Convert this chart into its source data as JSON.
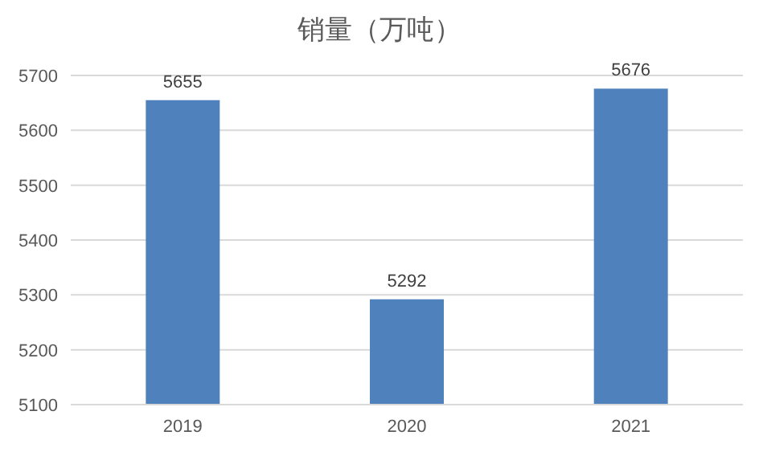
{
  "chart_data": {
    "type": "bar",
    "title": "销量（万吨）",
    "categories": [
      "2019",
      "2020",
      "2021"
    ],
    "values": [
      5655,
      5292,
      5676
    ],
    "color": "#4f81bd",
    "ylim": [
      5100,
      5700
    ],
    "yticks": [
      5100,
      5200,
      5300,
      5400,
      5500,
      5600,
      5700
    ],
    "grid": "y",
    "data_labels": true
  }
}
